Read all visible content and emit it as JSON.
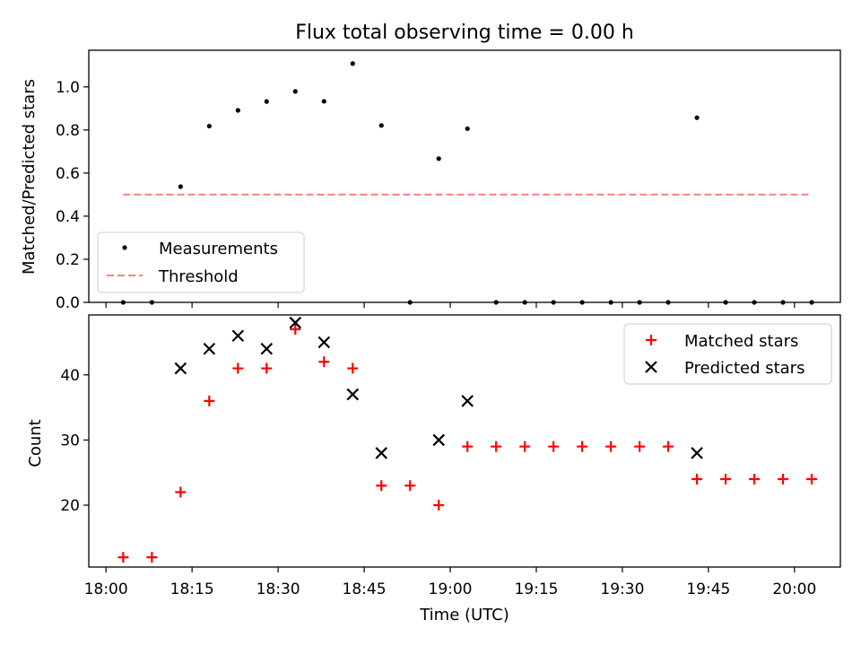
{
  "chart_data": {
    "title": "Flux total observing time = 0.00 h",
    "xlabel": "Time (UTC)",
    "x_tick_labels": [
      "18:00",
      "18:15",
      "18:30",
      "18:45",
      "19:00",
      "19:15",
      "19:30",
      "19:45",
      "20:00"
    ],
    "x_ticks": [
      "18:00",
      "18:15",
      "18:30",
      "18:45",
      "19:00",
      "19:15",
      "19:30",
      "19:45",
      "20:00"
    ],
    "xlim": [
      "17:57",
      "20:08"
    ],
    "colors": {
      "measurements": "#000000",
      "threshold": "#ff7f7f",
      "matched": "#ff0000",
      "predicted": "#000000"
    },
    "top": {
      "type": "scatter",
      "ylabel": "Matched/Predicted stars",
      "ylim": [
        0,
        1.17
      ],
      "y_ticks": [
        0.0,
        0.2,
        0.4,
        0.6,
        0.8,
        1.0
      ],
      "y_tick_labels": [
        "0.0",
        "0.2",
        "0.4",
        "0.6",
        "0.8",
        "1.0"
      ],
      "legend": {
        "position": "lower-left",
        "entries": [
          "Measurements",
          "Threshold"
        ]
      },
      "series": [
        {
          "name": "Measurements",
          "points": [
            [
              "18:03",
              0.0
            ],
            [
              "18:08",
              0.0
            ],
            [
              "18:13",
              0.537
            ],
            [
              "18:18",
              0.818
            ],
            [
              "18:23",
              0.891
            ],
            [
              "18:28",
              0.932
            ],
            [
              "18:33",
              0.979
            ],
            [
              "18:38",
              0.933
            ],
            [
              "18:43",
              1.108
            ],
            [
              "18:48",
              0.821
            ],
            [
              "18:53",
              0.0
            ],
            [
              "18:58",
              0.667
            ],
            [
              "19:03",
              0.806
            ],
            [
              "19:08",
              0.0
            ],
            [
              "19:13",
              0.0
            ],
            [
              "19:18",
              0.0
            ],
            [
              "19:23",
              0.0
            ],
            [
              "19:28",
              0.0
            ],
            [
              "19:33",
              0.0
            ],
            [
              "19:38",
              0.0
            ],
            [
              "19:43",
              0.857
            ],
            [
              "19:48",
              0.0
            ],
            [
              "19:53",
              0.0
            ],
            [
              "19:58",
              0.0
            ],
            [
              "20:03",
              0.0
            ]
          ]
        },
        {
          "name": "Threshold",
          "line": [
            [
              "18:03",
              0.5
            ],
            [
              "20:03",
              0.5
            ]
          ]
        }
      ]
    },
    "bottom": {
      "type": "scatter",
      "ylabel": "Count",
      "ylim": [
        10.5,
        49.2
      ],
      "y_ticks": [
        20,
        30,
        40
      ],
      "y_tick_labels": [
        "20",
        "30",
        "40"
      ],
      "legend": {
        "position": "top-right",
        "entries": [
          "Matched stars",
          "Predicted stars"
        ]
      },
      "series": [
        {
          "name": "Matched stars",
          "points": [
            [
              "18:03",
              12
            ],
            [
              "18:08",
              12
            ],
            [
              "18:13",
              22
            ],
            [
              "18:18",
              36
            ],
            [
              "18:23",
              41
            ],
            [
              "18:28",
              41
            ],
            [
              "18:33",
              47
            ],
            [
              "18:38",
              42
            ],
            [
              "18:43",
              41
            ],
            [
              "18:48",
              23
            ],
            [
              "18:53",
              23
            ],
            [
              "18:58",
              20
            ],
            [
              "19:03",
              29
            ],
            [
              "19:08",
              29
            ],
            [
              "19:13",
              29
            ],
            [
              "19:18",
              29
            ],
            [
              "19:23",
              29
            ],
            [
              "19:28",
              29
            ],
            [
              "19:33",
              29
            ],
            [
              "19:38",
              29
            ],
            [
              "19:43",
              24
            ],
            [
              "19:48",
              24
            ],
            [
              "19:53",
              24
            ],
            [
              "19:58",
              24
            ],
            [
              "20:03",
              24
            ]
          ]
        },
        {
          "name": "Predicted stars",
          "points": [
            [
              "18:13",
              41
            ],
            [
              "18:18",
              44
            ],
            [
              "18:23",
              46
            ],
            [
              "18:28",
              44
            ],
            [
              "18:33",
              48
            ],
            [
              "18:38",
              45
            ],
            [
              "18:43",
              37
            ],
            [
              "18:48",
              28
            ],
            [
              "18:58",
              30
            ],
            [
              "19:03",
              36
            ],
            [
              "19:43",
              28
            ]
          ]
        }
      ]
    }
  }
}
